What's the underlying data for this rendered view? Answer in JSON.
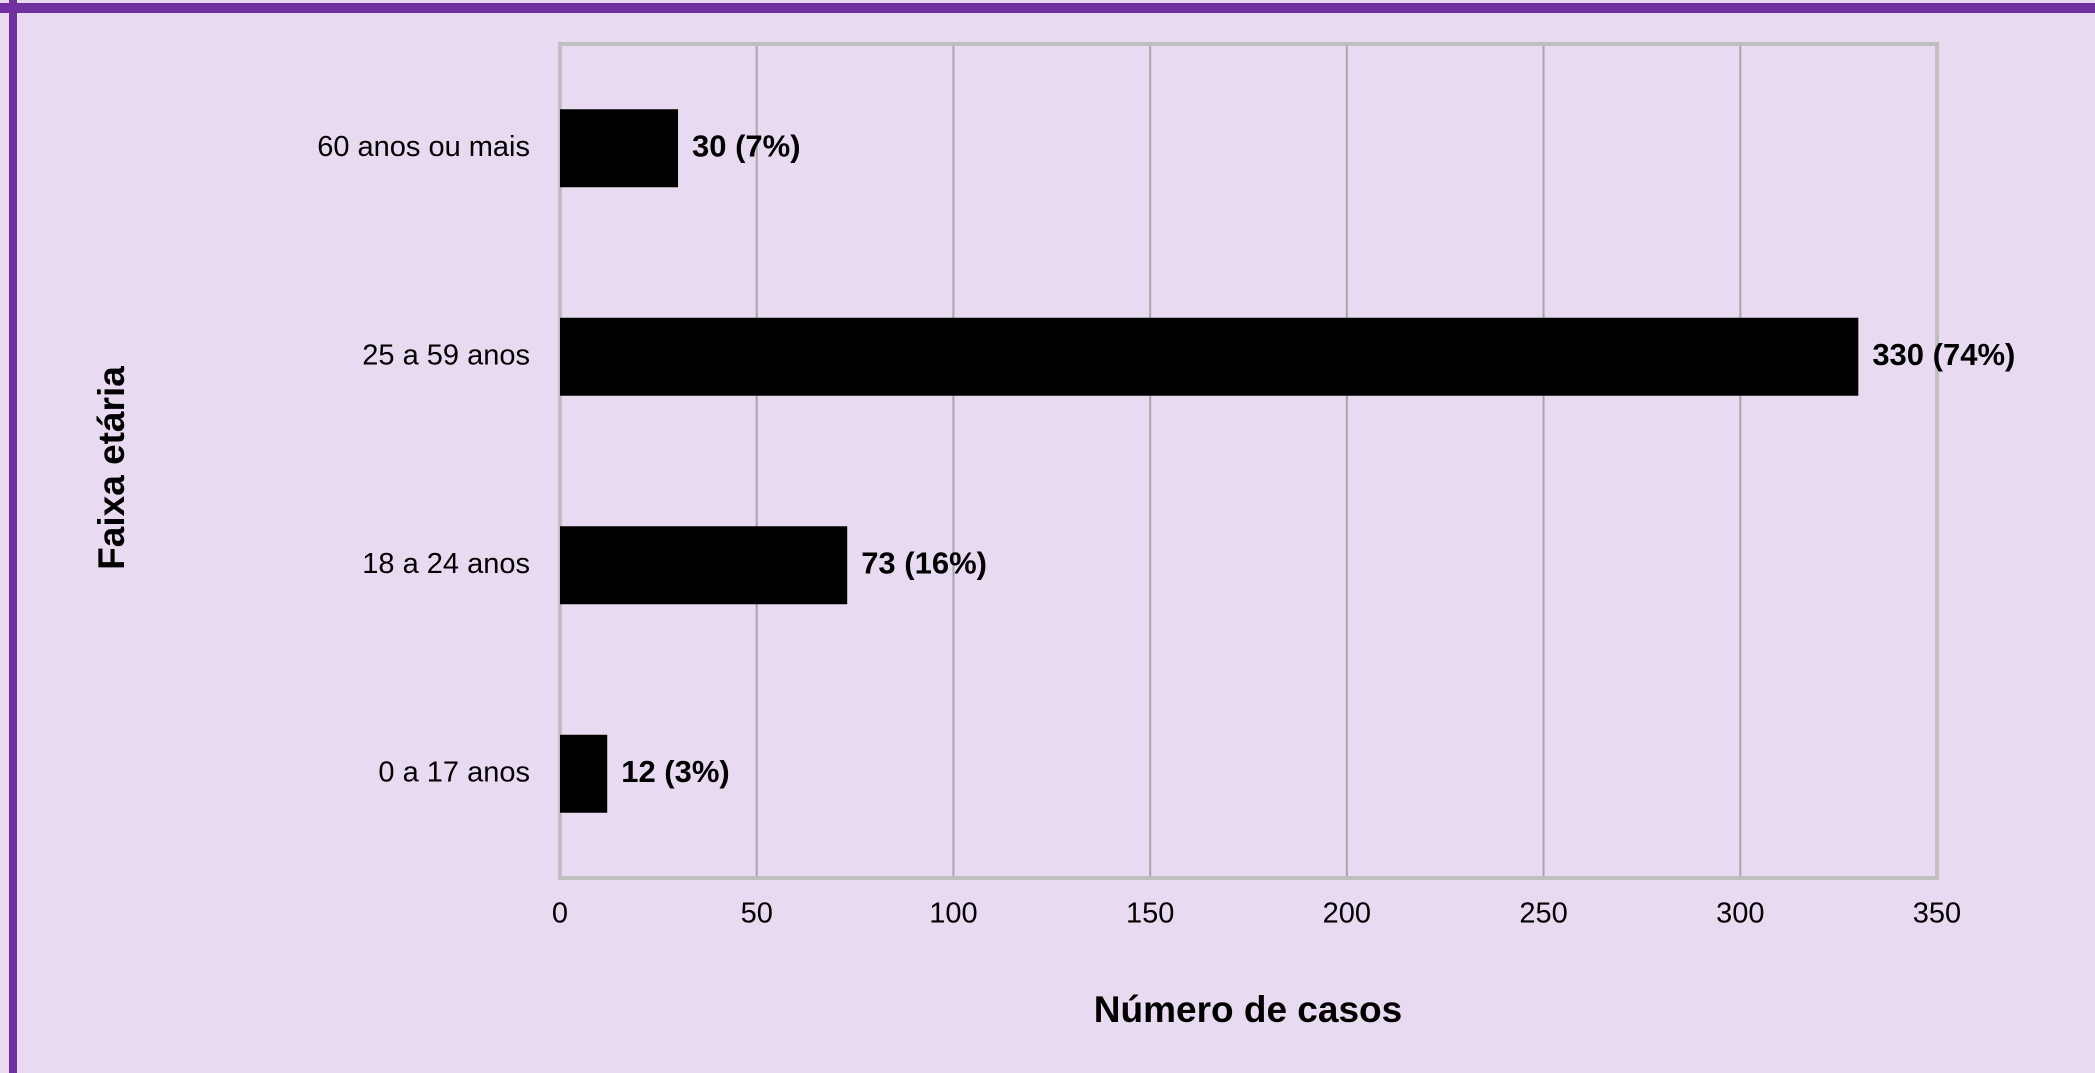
{
  "chart_data": {
    "type": "bar",
    "orientation": "horizontal",
    "xlabel": "Número de casos",
    "ylabel": "Faixa etária",
    "categories": [
      "60 anos ou mais",
      "25 a 59 anos",
      "18 a 24 anos",
      "0 a 17 anos"
    ],
    "values": [
      30,
      330,
      73,
      12
    ],
    "value_labels": [
      "30 (7%)",
      "330 (74%)",
      "73 (16%)",
      "12 (3%)"
    ],
    "color": "#000000",
    "xlim": [
      0,
      350
    ],
    "xticks": [
      0,
      50,
      100,
      150,
      200,
      250,
      300,
      350
    ],
    "grid": true
  }
}
